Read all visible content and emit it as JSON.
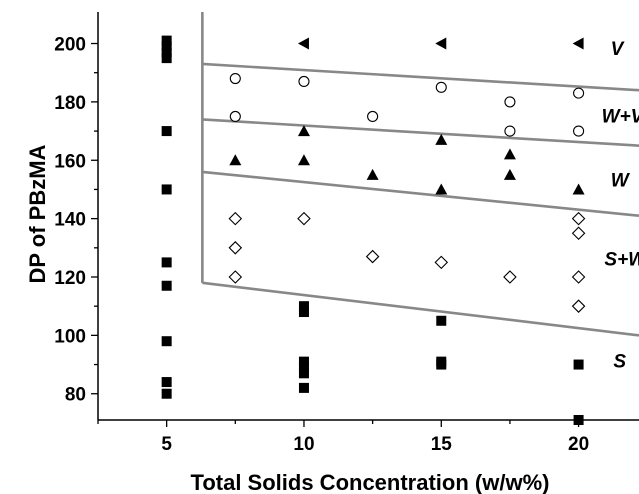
{
  "chart_data": {
    "type": "scatter",
    "title": "",
    "xlabel": "Total Solids Concentration (w/w%)",
    "ylabel": "DP of PBzMA",
    "xlim": [
      2.5,
      22.2
    ],
    "ylim": [
      71,
      210.8
    ],
    "x_ticks": [
      "5",
      "10",
      "15",
      "20"
    ],
    "y_ticks": [
      "80",
      "100",
      "120",
      "140",
      "160",
      "180",
      "200"
    ],
    "series": [
      {
        "marker": "filled-square",
        "points": [
          [
            5,
            201
          ],
          [
            5,
            199
          ],
          [
            5,
            197
          ],
          [
            5,
            195
          ],
          [
            5,
            170
          ],
          [
            5,
            150
          ],
          [
            5,
            125
          ],
          [
            5,
            117
          ],
          [
            5,
            98
          ],
          [
            5,
            84
          ],
          [
            5,
            80
          ],
          [
            10,
            110
          ],
          [
            10,
            108
          ],
          [
            10,
            91
          ],
          [
            10,
            89
          ],
          [
            10,
            87
          ],
          [
            10,
            82
          ],
          [
            15,
            105
          ],
          [
            15,
            91
          ],
          [
            15,
            90
          ],
          [
            20,
            90
          ],
          [
            20,
            71
          ]
        ]
      },
      {
        "marker": "filled-triangle-up",
        "points": [
          [
            7.5,
            160
          ],
          [
            10,
            170
          ],
          [
            10,
            160
          ],
          [
            12.5,
            155
          ],
          [
            15,
            167
          ],
          [
            15,
            150
          ],
          [
            17.5,
            162
          ],
          [
            17.5,
            155
          ],
          [
            20,
            150
          ]
        ]
      },
      {
        "marker": "open-circle",
        "points": [
          [
            7.5,
            188
          ],
          [
            7.5,
            175
          ],
          [
            10,
            187
          ],
          [
            12.5,
            175
          ],
          [
            15,
            185
          ],
          [
            17.5,
            180
          ],
          [
            17.5,
            170
          ],
          [
            20,
            183
          ],
          [
            20,
            170
          ]
        ]
      },
      {
        "marker": "open-diamond",
        "points": [
          [
            7.5,
            140
          ],
          [
            7.5,
            130
          ],
          [
            7.5,
            120
          ],
          [
            10,
            140
          ],
          [
            12.5,
            127
          ],
          [
            15,
            125
          ],
          [
            17.5,
            120
          ],
          [
            20,
            140
          ],
          [
            20,
            135
          ],
          [
            20,
            120
          ],
          [
            20,
            110
          ]
        ]
      },
      {
        "marker": "filled-triangle-left",
        "points": [
          [
            10,
            200
          ],
          [
            15,
            200
          ],
          [
            20,
            200
          ]
        ]
      }
    ],
    "phase_boundaries": [
      [
        [
          6.3,
          193
        ],
        [
          22.2,
          184
        ]
      ],
      [
        [
          6.3,
          174
        ],
        [
          22.2,
          165
        ]
      ],
      [
        [
          6.3,
          156
        ],
        [
          22.2,
          141
        ]
      ],
      [
        [
          6.3,
          118
        ],
        [
          22.2,
          100
        ]
      ]
    ],
    "region_labels": [
      {
        "text": "V",
        "x": 21.4,
        "y": 196
      },
      {
        "text": "W+V",
        "x": 21.6,
        "y": 173
      },
      {
        "text": "W",
        "x": 21.5,
        "y": 151
      },
      {
        "text": "S+W",
        "x": 21.7,
        "y": 124
      },
      {
        "text": "S",
        "x": 21.5,
        "y": 89
      }
    ],
    "grid": false,
    "legend": "none"
  }
}
